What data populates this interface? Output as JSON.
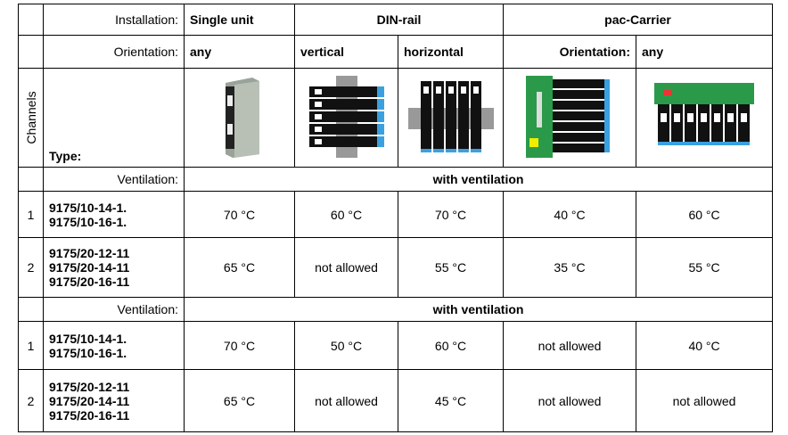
{
  "header": {
    "installation_label": "Installation:",
    "groups": [
      "Single unit",
      "DIN-rail",
      "pac-Carrier"
    ],
    "orientation_label": "Orientation:",
    "orientations": [
      "any",
      "vertical",
      "horizontal",
      "Orientation:",
      "any"
    ],
    "channels_label": "Channels",
    "type_label": "Type:"
  },
  "sections": [
    {
      "ventilation_label": "Ventilation:",
      "ventilation": "with ventilation",
      "rows": [
        {
          "channel": "1",
          "types": [
            "9175/10-14-1.",
            "9175/10-16-1."
          ],
          "values": [
            "70 °C",
            "60 °C",
            "70 °C",
            "40 °C",
            "60 °C"
          ]
        },
        {
          "channel": "2",
          "types": [
            "9175/20-12-11",
            "9175/20-14-11",
            "9175/20-16-11"
          ],
          "values": [
            "65 °C",
            "not allowed",
            "55 °C",
            "35 °C",
            "55 °C"
          ]
        }
      ]
    },
    {
      "ventilation_label": "Ventilation:",
      "ventilation": "with ventilation",
      "rows": [
        {
          "channel": "1",
          "types": [
            "9175/10-14-1.",
            "9175/10-16-1."
          ],
          "values": [
            "70 °C",
            "50 °C",
            "60 °C",
            "not allowed",
            "40 °C"
          ]
        },
        {
          "channel": "2",
          "types": [
            "9175/20-12-11",
            "9175/20-14-11",
            "9175/20-16-11"
          ],
          "values": [
            "65 °C",
            "not allowed",
            "45 °C",
            "not allowed",
            "not allowed"
          ]
        }
      ]
    }
  ]
}
